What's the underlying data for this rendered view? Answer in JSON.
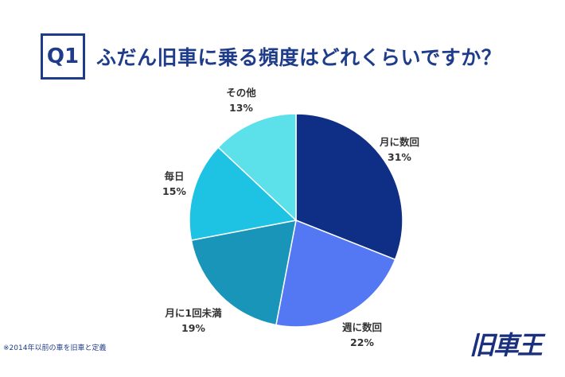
{
  "header": {
    "badge": "Q1",
    "title": "ふだん旧車に乗る頻度はどれくらいですか？"
  },
  "chart_data": {
    "type": "pie",
    "title": "ふだん旧車に乗る頻度はどれくらいですか？",
    "slices": [
      {
        "label": "月に数回",
        "value": 31,
        "value_label": "31%",
        "color": "#0f2f86"
      },
      {
        "label": "週に数回",
        "value": 22,
        "value_label": "22%",
        "color": "#5478f4"
      },
      {
        "label": "月に1回未満",
        "value": 19,
        "value_label": "19%",
        "color": "#1895b9"
      },
      {
        "label": "毎日",
        "value": 15,
        "value_label": "15%",
        "color": "#1ec3e4"
      },
      {
        "label": "その他",
        "value": 13,
        "value_label": "13%",
        "color": "#5ce0ea"
      }
    ],
    "start_angle_deg": 0,
    "direction": "clockwise"
  },
  "footnote": "※2014年以前の車を旧車と定義",
  "logo_text": "旧車王"
}
